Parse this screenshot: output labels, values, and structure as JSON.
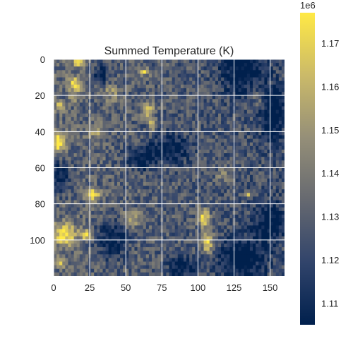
{
  "chart_data": {
    "type": "heatmap",
    "title": "Summed Temperature (K)",
    "xlabel": "",
    "ylabel": "",
    "grid": true,
    "x_range": [
      0,
      160
    ],
    "y_range": [
      120,
      0
    ],
    "x_ticks": [
      0,
      25,
      50,
      75,
      100,
      125,
      150
    ],
    "y_ticks": [
      0,
      20,
      40,
      60,
      80,
      100
    ],
    "colormap": "cividis",
    "colormap_stops": [
      "#00204d",
      "#31446b",
      "#666970",
      "#958f78",
      "#cbba69",
      "#ffe945"
    ],
    "colorbar": {
      "range": [
        1105000,
        1177000
      ],
      "ticks": [
        1110000,
        1120000,
        1130000,
        1140000,
        1150000,
        1160000,
        1170000
      ],
      "tick_labels": [
        "1.11",
        "1.12",
        "1.13",
        "1.14",
        "1.15",
        "1.16",
        "1.17"
      ],
      "offset_label": "1e6"
    },
    "value_base": 1130000,
    "hotspots": [
      {
        "x": 17,
        "y": 2,
        "w": 4,
        "h": 2,
        "value": 1176000
      },
      {
        "x": 15,
        "y": 14,
        "w": 5,
        "h": 4,
        "value": 1174000
      },
      {
        "x": 4,
        "y": 26,
        "w": 3,
        "h": 3,
        "value": 1168000
      },
      {
        "x": 14,
        "y": 22,
        "w": 3,
        "h": 2,
        "value": 1160000
      },
      {
        "x": 65,
        "y": 28,
        "w": 4,
        "h": 4,
        "value": 1174000
      },
      {
        "x": 68,
        "y": 36,
        "w": 2,
        "h": 4,
        "value": 1170000
      },
      {
        "x": 63,
        "y": 7,
        "w": 5,
        "h": 2,
        "value": 1168000
      },
      {
        "x": 4,
        "y": 46,
        "w": 4,
        "h": 6,
        "value": 1177000
      },
      {
        "x": 27,
        "y": 75,
        "w": 5,
        "h": 3,
        "value": 1175000
      },
      {
        "x": 135,
        "y": 75,
        "w": 2,
        "h": 2,
        "value": 1172000
      },
      {
        "x": 8,
        "y": 97,
        "w": 8,
        "h": 6,
        "value": 1177000
      },
      {
        "x": 23,
        "y": 97,
        "w": 4,
        "h": 3,
        "value": 1173000
      },
      {
        "x": 104,
        "y": 88,
        "w": 4,
        "h": 5,
        "value": 1174000
      },
      {
        "x": 107,
        "y": 102,
        "w": 4,
        "h": 6,
        "value": 1173000
      },
      {
        "x": 55,
        "y": 88,
        "w": 6,
        "h": 4,
        "value": 1160000
      },
      {
        "x": 5,
        "y": 112,
        "w": 3,
        "h": 3,
        "value": 1165000
      },
      {
        "x": 40,
        "y": 18,
        "w": 6,
        "h": 5,
        "value": 1150000
      },
      {
        "x": 30,
        "y": 40,
        "w": 7,
        "h": 5,
        "value": 1148000
      },
      {
        "x": 118,
        "y": 64,
        "w": 6,
        "h": 4,
        "value": 1146000
      },
      {
        "x": 142,
        "y": 22,
        "w": 6,
        "h": 6,
        "value": 1143000
      }
    ],
    "coldspots": [
      {
        "x": 130,
        "y": 4,
        "w": 14,
        "h": 14,
        "value": 1105000
      },
      {
        "x": 152,
        "y": 30,
        "w": 8,
        "h": 14,
        "value": 1105000
      },
      {
        "x": 4,
        "y": 65,
        "w": 8,
        "h": 8,
        "value": 1105000
      },
      {
        "x": 40,
        "y": 100,
        "w": 10,
        "h": 10,
        "value": 1106000
      },
      {
        "x": 80,
        "y": 50,
        "w": 14,
        "h": 8,
        "value": 1107000
      },
      {
        "x": 60,
        "y": 55,
        "w": 10,
        "h": 6,
        "value": 1108000
      },
      {
        "x": 130,
        "y": 110,
        "w": 16,
        "h": 12,
        "value": 1106000
      },
      {
        "x": 150,
        "y": 90,
        "w": 10,
        "h": 10,
        "value": 1107000
      },
      {
        "x": 90,
        "y": 115,
        "w": 10,
        "h": 6,
        "value": 1108000
      },
      {
        "x": 33,
        "y": 8,
        "w": 6,
        "h": 6,
        "value": 1110000
      }
    ]
  }
}
